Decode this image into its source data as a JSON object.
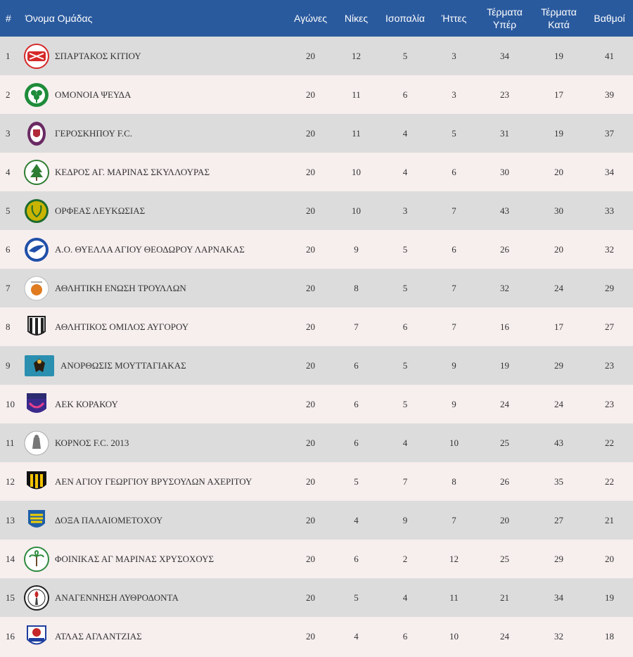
{
  "colors": {
    "header_bg": "#2a5a9e",
    "row_odd": "#dcdcdc",
    "row_even": "#f7eeee"
  },
  "headers": {
    "rank": "#",
    "team": "Όνομα Ομάδας",
    "played": "Αγώνες",
    "wins": "Νίκες",
    "draws": "Ισοπαλία",
    "losses": "Ήττες",
    "goals_for_1": "Τέρματα",
    "goals_for_2": "Υπέρ",
    "goals_against_1": "Τέρματα",
    "goals_against_2": "Κατά",
    "points": "Βαθμοί"
  },
  "rows": [
    {
      "rank": "1",
      "team": "ΣΠΑΡΤΑΚΟΣ ΚΙΤΙΟΥ",
      "played": "20",
      "wins": "12",
      "draws": "5",
      "losses": "3",
      "gf": "34",
      "ga": "19",
      "pts": "41",
      "logo": "spartakos-crest",
      "logo_color": "#d62828"
    },
    {
      "rank": "2",
      "team": "ΟΜΟΝΟΙΑ ΨΕΥΔΑ",
      "played": "20",
      "wins": "11",
      "draws": "6",
      "losses": "3",
      "gf": "23",
      "ga": "17",
      "pts": "39",
      "logo": "clover-crest",
      "logo_color": "#1e8c3a"
    },
    {
      "rank": "3",
      "team": "ΓΕΡΟΣΚΗΠΟΥ F.C.",
      "played": "20",
      "wins": "11",
      "draws": "4",
      "losses": "5",
      "gf": "31",
      "ga": "19",
      "pts": "37",
      "logo": "shield-crest",
      "logo_color": "#6a2a63"
    },
    {
      "rank": "4",
      "team": "ΚΕΔΡΟΣ ΑΓ. ΜΑΡΙΝΑΣ ΣΚΥΛΛΟΥΡΑΣ",
      "played": "20",
      "wins": "10",
      "draws": "4",
      "losses": "6",
      "gf": "30",
      "ga": "20",
      "pts": "34",
      "logo": "cedar-crest",
      "logo_color": "#2e7d32"
    },
    {
      "rank": "5",
      "team": "ΟΡΦΕΑΣ ΛΕΥΚΩΣΙΑΣ",
      "played": "20",
      "wins": "10",
      "draws": "3",
      "losses": "7",
      "gf": "43",
      "ga": "30",
      "pts": "33",
      "logo": "lyre-crest",
      "logo_color": "#c9b400"
    },
    {
      "rank": "6",
      "team": "Α.Ο. ΘΥΕΛΛΑ ΑΓΙΟΥ ΘΕΟΔΩΡΟΥ ΛΑΡΝΑΚΑΣ",
      "played": "20",
      "wins": "9",
      "draws": "5",
      "losses": "6",
      "gf": "26",
      "ga": "20",
      "pts": "32",
      "logo": "bird-crest",
      "logo_color": "#1f4fa8"
    },
    {
      "rank": "7",
      "team": "ΑΘΛΗΤΙΚΗ ΕΝΩΣΗ ΤΡΟΥΛΛΩΝ",
      "played": "20",
      "wins": "8",
      "draws": "5",
      "losses": "7",
      "gf": "32",
      "ga": "24",
      "pts": "29",
      "logo": "ball-crest",
      "logo_color": "#e07b20"
    },
    {
      "rank": "8",
      "team": "ΑΘΛΗΤΙΚΟΣ ΟΜΙΛΟΣ ΑΥΓΟΡΟΥ",
      "played": "20",
      "wins": "7",
      "draws": "6",
      "losses": "7",
      "gf": "16",
      "ga": "17",
      "pts": "27",
      "logo": "striped-shield-crest",
      "logo_color": "#222222"
    },
    {
      "rank": "9",
      "team": "ΑΝΟΡΘΩΣΙΣ ΜΟΥΤΤΑΓΙΑΚΑΣ",
      "played": "20",
      "wins": "6",
      "draws": "5",
      "losses": "9",
      "gf": "19",
      "ga": "29",
      "pts": "23",
      "logo": "eagle-crest",
      "logo_color": "#2b8fb0"
    },
    {
      "rank": "10",
      "team": "ΑΕΚ ΚΟΡΑΚΟΥ",
      "played": "20",
      "wins": "6",
      "draws": "5",
      "losses": "9",
      "gf": "24",
      "ga": "24",
      "pts": "23",
      "logo": "aek-crest",
      "logo_color": "#3a2a8c"
    },
    {
      "rank": "11",
      "team": "ΚΟΡΝΟΣ F.C. 2013",
      "played": "20",
      "wins": "6",
      "draws": "4",
      "losses": "10",
      "gf": "25",
      "ga": "43",
      "pts": "22",
      "logo": "kornos-crest",
      "logo_color": "#777777"
    },
    {
      "rank": "12",
      "team": "ΑΕΝ ΑΓΙΟΥ ΓΕΩΡΓΙΟΥ ΒΡΥΣΟΥΛΩΝ ΑΧΕΡΙΤΟΥ",
      "played": "20",
      "wins": "5",
      "draws": "7",
      "losses": "8",
      "gf": "26",
      "ga": "35",
      "pts": "22",
      "logo": "yellow-black-crest",
      "logo_color": "#f2c200"
    },
    {
      "rank": "13",
      "team": "ΔΟΞΑ ΠΑΛΑΙΟΜΕΤΟΧΟΥ",
      "played": "20",
      "wins": "4",
      "draws": "9",
      "losses": "7",
      "gf": "20",
      "ga": "27",
      "pts": "21",
      "logo": "doxa-crest",
      "logo_color": "#1f5fa8"
    },
    {
      "rank": "14",
      "team": "ΦΟΙΝΙΚΑΣ ΑΓ ΜΑΡΙΝΑΣ ΧΡΥΣΟΧΟΥΣ",
      "played": "20",
      "wins": "6",
      "draws": "2",
      "losses": "12",
      "gf": "25",
      "ga": "29",
      "pts": "20",
      "logo": "palm-crest",
      "logo_color": "#2e8b3e"
    },
    {
      "rank": "15",
      "team": "ΑΝΑΓΕΝΝΗΣΗ ΛΥΘΡΟΔΟΝΤΑ",
      "played": "20",
      "wins": "5",
      "draws": "4",
      "losses": "11",
      "gf": "21",
      "ga": "34",
      "pts": "19",
      "logo": "torch-crest",
      "logo_color": "#c62828"
    },
    {
      "rank": "16",
      "team": "ΑΤΛΑΣ ΑΓΛΑΝΤΖΙΑΣ",
      "played": "20",
      "wins": "4",
      "draws": "6",
      "losses": "10",
      "gf": "24",
      "ga": "32",
      "pts": "18",
      "logo": "atlas-crest",
      "logo_color": "#1f3f9e"
    }
  ]
}
